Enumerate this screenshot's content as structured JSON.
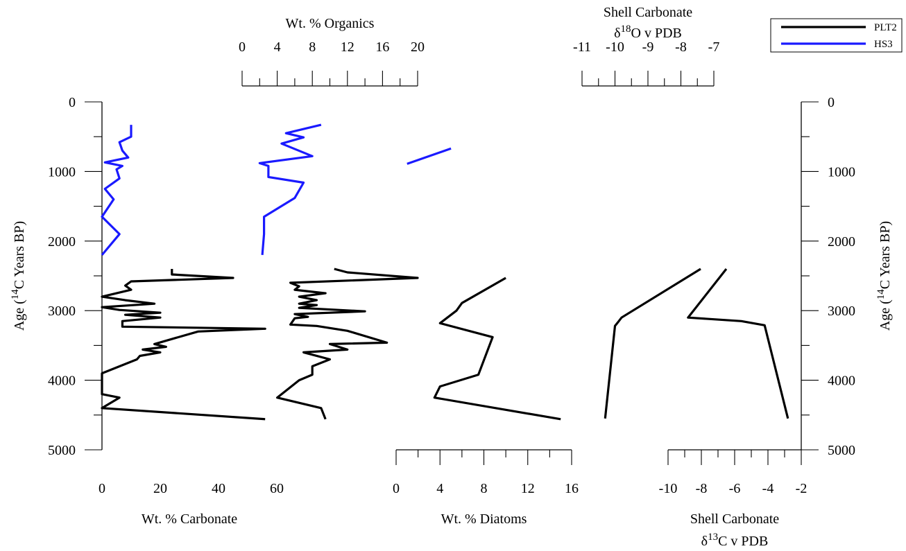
{
  "chart_data": {
    "type": "line",
    "legend": {
      "placement": "top-right",
      "entries": [
        {
          "name": "PLT2",
          "color": "#000000"
        },
        {
          "name": "HS3",
          "color": "#1a1aff"
        }
      ]
    },
    "y_axis": {
      "label_left": "Age (14C Years BP)",
      "label_prefix": "Age (",
      "label_sup": "14",
      "label_suffix": "C Years BP)",
      "range": [
        0,
        5000
      ],
      "ticks": [
        0,
        1000,
        2000,
        3000,
        4000,
        5000
      ],
      "inverted": true
    },
    "panels": [
      {
        "id": "carbonate",
        "xlabel": "Wt. % Carbonate",
        "xlim": [
          0,
          60
        ],
        "ticks": [
          0,
          20,
          40,
          60
        ],
        "series": [
          {
            "name": "HS3",
            "points": [
              [
                10,
                330
              ],
              [
                10,
                500
              ],
              [
                6,
                580
              ],
              [
                7,
                700
              ],
              [
                9,
                800
              ],
              [
                1,
                870
              ],
              [
                7,
                920
              ],
              [
                5,
                970
              ],
              [
                6,
                1100
              ],
              [
                1,
                1250
              ],
              [
                4,
                1400
              ],
              [
                0,
                1650
              ],
              [
                6,
                1900
              ],
              [
                0,
                2200
              ]
            ]
          },
          {
            "name": "PLT2",
            "points": [
              [
                24,
                2400
              ],
              [
                24,
                2480
              ],
              [
                45,
                2530
              ],
              [
                10,
                2580
              ],
              [
                8,
                2640
              ],
              [
                10,
                2700
              ],
              [
                0,
                2800
              ],
              [
                8,
                2850
              ],
              [
                18,
                2900
              ],
              [
                0,
                2950
              ],
              [
                6,
                2990
              ],
              [
                20,
                3030
              ],
              [
                8,
                3060
              ],
              [
                20,
                3100
              ],
              [
                7,
                3150
              ],
              [
                7,
                3230
              ],
              [
                56,
                3260
              ],
              [
                33,
                3300
              ],
              [
                18,
                3480
              ],
              [
                22,
                3520
              ],
              [
                14,
                3560
              ],
              [
                20,
                3600
              ],
              [
                13,
                3650
              ],
              [
                12,
                3700
              ],
              [
                0,
                3900
              ],
              [
                0,
                4200
              ],
              [
                6,
                4250
              ],
              [
                0,
                4400
              ],
              [
                56,
                4560
              ]
            ]
          }
        ]
      },
      {
        "id": "organics",
        "xlabel": "Wt. % Organics",
        "xlim": [
          0,
          20
        ],
        "ticks": [
          0,
          4,
          8,
          12,
          16,
          20
        ],
        "ticks_position": "top",
        "series": [
          {
            "name": "HS3",
            "points": [
              [
                9,
                330
              ],
              [
                5,
                450
              ],
              [
                7,
                510
              ],
              [
                4.5,
                600
              ],
              [
                8,
                780
              ],
              [
                2,
                880
              ],
              [
                3,
                920
              ],
              [
                3,
                1080
              ],
              [
                7,
                1160
              ],
              [
                6,
                1380
              ],
              [
                2.5,
                1650
              ],
              [
                2.5,
                1900
              ],
              [
                2.3,
                2200
              ]
            ]
          },
          {
            "name": "PLT2",
            "points": [
              [
                10.5,
                2400
              ],
              [
                12,
                2450
              ],
              [
                20,
                2530
              ],
              [
                5.5,
                2600
              ],
              [
                6.5,
                2650
              ],
              [
                6,
                2700
              ],
              [
                9.5,
                2750
              ],
              [
                6.5,
                2800
              ],
              [
                8.5,
                2850
              ],
              [
                6.5,
                2900
              ],
              [
                8.5,
                2920
              ],
              [
                6.5,
                2960
              ],
              [
                14,
                3010
              ],
              [
                6,
                3050
              ],
              [
                7.5,
                3090
              ],
              [
                6,
                3110
              ],
              [
                5.5,
                3200
              ],
              [
                8.5,
                3220
              ],
              [
                12,
                3290
              ],
              [
                16.5,
                3460
              ],
              [
                10,
                3480
              ],
              [
                12,
                3560
              ],
              [
                7,
                3600
              ],
              [
                10,
                3700
              ],
              [
                8,
                3800
              ],
              [
                8,
                3920
              ],
              [
                6.5,
                4000
              ],
              [
                4,
                4250
              ],
              [
                9,
                4400
              ],
              [
                9.5,
                4560
              ]
            ]
          }
        ]
      },
      {
        "id": "diatoms",
        "xlabel": "Wt. % Diatoms",
        "xlim": [
          0,
          16
        ],
        "ticks": [
          0,
          4,
          8,
          12,
          16
        ],
        "series": [
          {
            "name": "HS3",
            "points": [
              [
                1,
                890
              ],
              [
                5,
                670
              ]
            ]
          },
          {
            "name": "PLT2",
            "points": [
              [
                10,
                2530
              ],
              [
                6,
                2890
              ],
              [
                5.5,
                3000
              ],
              [
                4,
                3180
              ],
              [
                8.8,
                3380
              ],
              [
                7.5,
                3920
              ],
              [
                4,
                4090
              ],
              [
                3.5,
                4250
              ],
              [
                15,
                4560
              ]
            ]
          }
        ]
      },
      {
        "id": "d13c",
        "xlabel_line1": "Shell Carbonate",
        "xlabel_line2": "δ13C v PDB",
        "xlabel_prefix": "δ",
        "xlabel_sup": "13",
        "xlabel_suffix": "C v PDB",
        "xlim": [
          -10,
          -2
        ],
        "ticks": [
          -10,
          -8,
          -6,
          -4,
          -2
        ],
        "series": [
          {
            "name": "PLT2",
            "points": [
              [
                -6.5,
                2400
              ],
              [
                -8.8,
                3100
              ],
              [
                -5.6,
                3150
              ],
              [
                -4.2,
                3210
              ],
              [
                -2.8,
                4550
              ]
            ]
          }
        ]
      },
      {
        "id": "d18o",
        "xlabel_line1": "Shell Carbonate",
        "xlabel_line2": "δ18O v PDB",
        "xlabel_prefix": "δ",
        "xlabel_sup": "18",
        "xlabel_suffix": "O v PDB",
        "xlim": [
          -11,
          -7
        ],
        "ticks": [
          -11,
          -10,
          -9,
          -8,
          -7
        ],
        "ticks_position": "top",
        "series": [
          {
            "name": "PLT2",
            "points": [
              [
                -7.4,
                2400
              ],
              [
                -9.8,
                3100
              ],
              [
                -9.9,
                3160
              ],
              [
                -10,
                3220
              ],
              [
                -10.3,
                4550
              ]
            ]
          }
        ]
      }
    ]
  }
}
